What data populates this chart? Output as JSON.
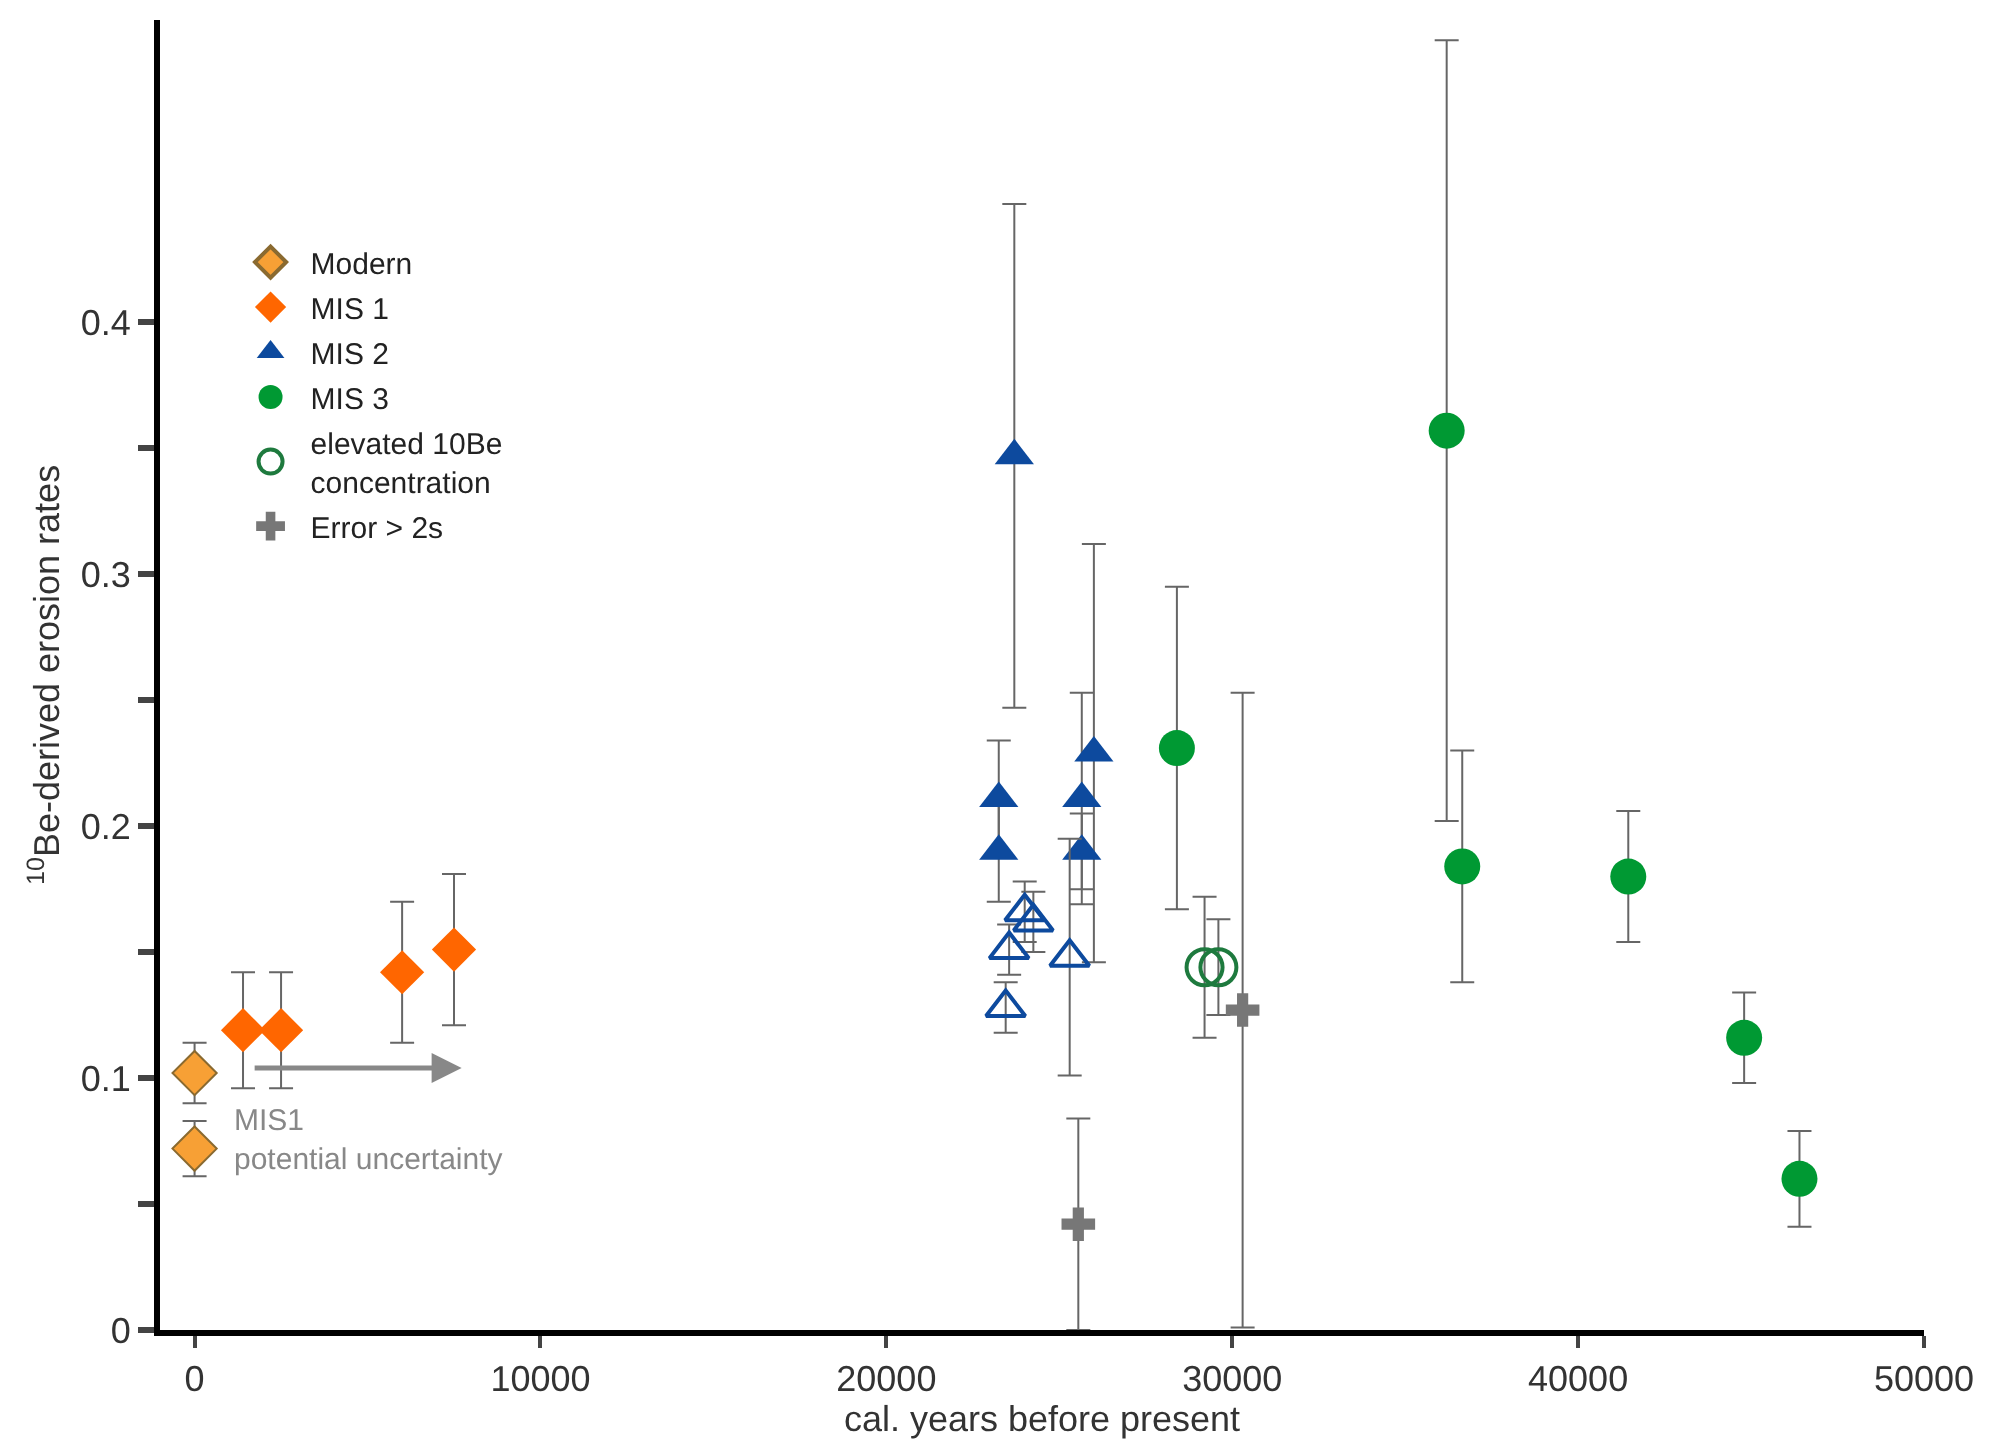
{
  "chart_data": {
    "type": "scatter",
    "xlabel": "cal. years before present",
    "ylabel": "$^{10}$Be-derived erosion rates",
    "xlim": [
      -1000,
      50000
    ],
    "ylim": [
      0,
      0.52
    ],
    "xticks": [
      0,
      10000,
      20000,
      30000,
      40000,
      50000
    ],
    "yticks": [
      0,
      {
        "value": 0.05,
        "label": null
      },
      0.1,
      {
        "value": 0.15,
        "label": null
      },
      0.2,
      {
        "value": 0.25,
        "label": null
      },
      0.3,
      {
        "value": 0.35,
        "label": null
      },
      0.4
    ],
    "legend": "top left",
    "series": [
      {
        "name": "Modern",
        "color": "#f7a035",
        "marker": "diamond",
        "x": [
          0,
          0
        ],
        "values": [
          0.102,
          0.072
        ],
        "errors": [
          0.012,
          0.011
        ]
      },
      {
        "name": "MIS 1",
        "color": "#ff6600",
        "marker": "diamond",
        "x": [
          1400,
          2500,
          6000,
          7500
        ],
        "values": [
          0.119,
          0.119,
          0.142,
          0.151
        ],
        "errors": [
          0.023,
          0.023,
          0.028,
          0.03
        ]
      },
      {
        "name": "MIS 2",
        "color": "#0d4a9e",
        "marker": "triangle",
        "x": [
          23700,
          23250,
          23250,
          25650,
          25650,
          26000
        ],
        "values": [
          0.347,
          0.211,
          0.19,
          0.211,
          0.19,
          0.229
        ],
        "errors": [
          0.1,
          0.023,
          0.02,
          0.042,
          0.015,
          0.083
        ]
      },
      {
        "name": "MIS 3",
        "color": "#009933",
        "marker": "circle",
        "x": [
          28400,
          36200,
          36650,
          41450,
          44800,
          46400
        ],
        "values": [
          0.231,
          0.357,
          0.184,
          0.18,
          0.116,
          0.06
        ],
        "errors": [
          0.064,
          0.155,
          0.046,
          0.026,
          0.018,
          0.019
        ]
      },
      {
        "name": "elevated 10Be\nconcentration",
        "color": "#1e7a3e",
        "marker": "circle",
        "x": [
          29200,
          29600
        ],
        "values": [
          0.144,
          0.144
        ],
        "errors": [
          0.028,
          0.019
        ]
      },
      {
        "color": "#0d4a9e",
        "marker": "triangle",
        "x": [
          24000,
          24250,
          23550,
          23450,
          25300
        ],
        "values": [
          0.166,
          0.162,
          0.151,
          0.128,
          0.148
        ],
        "errors": [
          0.012,
          0.012,
          0.01,
          0.01,
          0.047
        ]
      },
      {
        "name": "Error > 2s",
        "color": "#777777",
        "marker": "cross",
        "x": [
          25550,
          30300
        ],
        "values": [
          0.042,
          0.127
        ],
        "errors": [
          0.042,
          0.126
        ]
      }
    ],
    "annotations": [
      "MIS1\npotential uncertainty"
    ]
  }
}
